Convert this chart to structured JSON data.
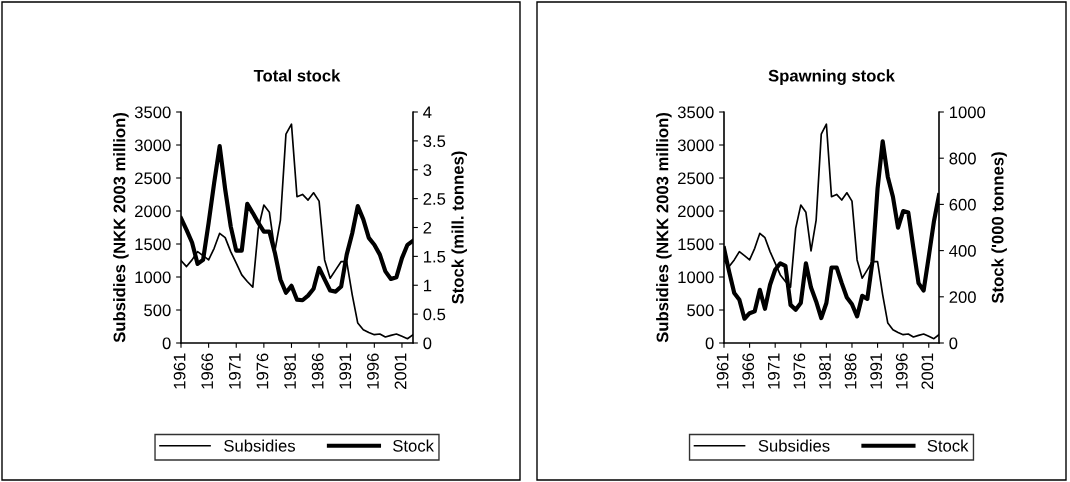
{
  "chart_data": [
    {
      "type": "line",
      "title": "Total stock",
      "ylabel": "Subsidies (NKK 2003 million)",
      "y2label": "Stock (mill. tonnes)",
      "categories": [
        "1961",
        null,
        null,
        null,
        null,
        "1966",
        null,
        null,
        null,
        null,
        "1971",
        null,
        null,
        null,
        null,
        "1976",
        null,
        null,
        null,
        null,
        "1981",
        null,
        null,
        null,
        null,
        "1986",
        null,
        null,
        null,
        null,
        "1991",
        null,
        null,
        null,
        null,
        "1996",
        null,
        null,
        null,
        null,
        "2001",
        null,
        null
      ],
      "series": [
        {
          "name": "Subsidies",
          "color": "#000000",
          "axis": "y",
          "values": [
            1250,
            1158,
            1259,
            1385,
            1324,
            1259,
            1435,
            1662,
            1596,
            1385,
            1209,
            1032,
            932,
            846,
            1737,
            2090,
            1980,
            1395,
            1863,
            3165,
            3316,
            2216,
            2251,
            2166,
            2276,
            2150,
            1259,
            982,
            1108,
            1234,
            1234,
            730,
            302,
            201,
            160,
            126,
            136,
            91,
            116,
            136,
            101,
            65,
            126
          ]
        },
        {
          "name": "Stock",
          "color": "#000000",
          "axis": "y2",
          "values": [
            2.16,
            1.96,
            1.74,
            1.37,
            1.44,
            2.08,
            2.77,
            3.41,
            2.66,
            2.02,
            1.6,
            1.6,
            2.41,
            2.25,
            2.08,
            1.93,
            1.93,
            1.56,
            1.1,
            0.87,
            0.99,
            0.75,
            0.74,
            0.82,
            0.94,
            1.3,
            1.1,
            0.91,
            0.89,
            0.98,
            1.53,
            1.9,
            2.37,
            2.14,
            1.82,
            1.7,
            1.53,
            1.24,
            1.11,
            1.14,
            1.47,
            1.7,
            1.77
          ]
        }
      ],
      "ylim": [
        0,
        3500
      ],
      "yticks": [
        0,
        500,
        1000,
        1500,
        2000,
        2500,
        3000,
        3500
      ],
      "y2lim": [
        0,
        4
      ],
      "y2ticks": [
        0,
        0.5,
        1,
        1.5,
        2,
        2.5,
        3,
        3.5,
        4
      ],
      "grid": false,
      "legend": "bottom"
    },
    {
      "type": "line",
      "title": "Spawning stock",
      "ylabel": "Subsidies (NKK 2003 million)",
      "y2label": "Stock ('000 tonnes)",
      "categories": [
        "1961",
        null,
        null,
        null,
        null,
        "1966",
        null,
        null,
        null,
        null,
        "1971",
        null,
        null,
        null,
        null,
        "1976",
        null,
        null,
        null,
        null,
        "1981",
        null,
        null,
        null,
        null,
        "1986",
        null,
        null,
        null,
        null,
        "1991",
        null,
        null,
        null,
        null,
        "1996",
        null,
        null,
        null,
        null,
        "2001",
        null,
        null
      ],
      "series": [
        {
          "name": "Subsidies",
          "color": "#000000",
          "axis": "y",
          "values": [
            1250,
            1158,
            1259,
            1385,
            1324,
            1259,
            1435,
            1662,
            1596,
            1385,
            1209,
            1032,
            932,
            846,
            1737,
            2090,
            1980,
            1395,
            1863,
            3165,
            3316,
            2216,
            2251,
            2166,
            2276,
            2150,
            1259,
            982,
            1108,
            1234,
            1234,
            730,
            302,
            201,
            160,
            126,
            136,
            91,
            116,
            136,
            101,
            65,
            126
          ]
        },
        {
          "name": "Stock",
          "color": "#000000",
          "axis": "y2",
          "values": [
            410,
            309,
            216,
            187,
            105,
            129,
            137,
            230,
            148,
            252,
            317,
            345,
            334,
            165,
            144,
            173,
            345,
            240,
            180,
            108,
            173,
            327,
            327,
            259,
            197,
            168,
            115,
            204,
            191,
            353,
            669,
            873,
            719,
            633,
            499,
            571,
            565,
            410,
            259,
            227,
            374,
            525,
            640
          ]
        }
      ],
      "ylim": [
        0,
        3500
      ],
      "yticks": [
        0,
        500,
        1000,
        1500,
        2000,
        2500,
        3000,
        3500
      ],
      "y2lim": [
        0,
        1000
      ],
      "y2ticks": [
        0,
        200,
        400,
        600,
        800,
        1000
      ],
      "grid": false,
      "legend": "bottom"
    }
  ]
}
